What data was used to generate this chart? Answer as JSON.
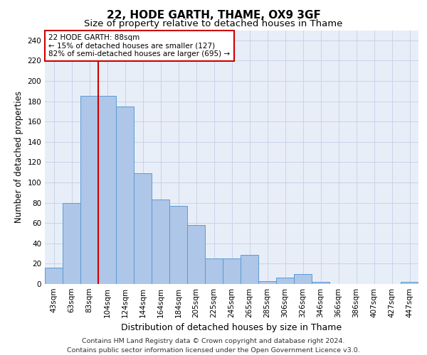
{
  "title1": "22, HODE GARTH, THAME, OX9 3GF",
  "title2": "Size of property relative to detached houses in Thame",
  "xlabel": "Distribution of detached houses by size in Thame",
  "ylabel": "Number of detached properties",
  "categories": [
    "43sqm",
    "63sqm",
    "83sqm",
    "104sqm",
    "124sqm",
    "144sqm",
    "164sqm",
    "184sqm",
    "205sqm",
    "225sqm",
    "245sqm",
    "265sqm",
    "285sqm",
    "306sqm",
    "326sqm",
    "346sqm",
    "366sqm",
    "386sqm",
    "407sqm",
    "427sqm",
    "447sqm"
  ],
  "values": [
    16,
    80,
    185,
    185,
    175,
    109,
    83,
    77,
    58,
    25,
    25,
    29,
    3,
    6,
    10,
    2,
    0,
    0,
    0,
    0,
    2
  ],
  "bar_color": "#aec6e8",
  "bar_edge_color": "#5b9bd5",
  "subject_line_color": "#cc0000",
  "annotation_text": "22 HODE GARTH: 88sqm\n← 15% of detached houses are smaller (127)\n82% of semi-detached houses are larger (695) →",
  "annotation_box_color": "#cc0000",
  "annotation_fontsize": 7.5,
  "ylim": [
    0,
    250
  ],
  "yticks": [
    0,
    20,
    40,
    60,
    80,
    100,
    120,
    140,
    160,
    180,
    200,
    220,
    240
  ],
  "grid_color": "#c8d4e8",
  "background_color": "#e8eef8",
  "footer_text": "Contains HM Land Registry data © Crown copyright and database right 2024.\nContains public sector information licensed under the Open Government Licence v3.0.",
  "title1_fontsize": 11,
  "title2_fontsize": 9.5,
  "xlabel_fontsize": 9,
  "ylabel_fontsize": 8.5,
  "tick_fontsize": 7.5,
  "footer_fontsize": 6.8
}
